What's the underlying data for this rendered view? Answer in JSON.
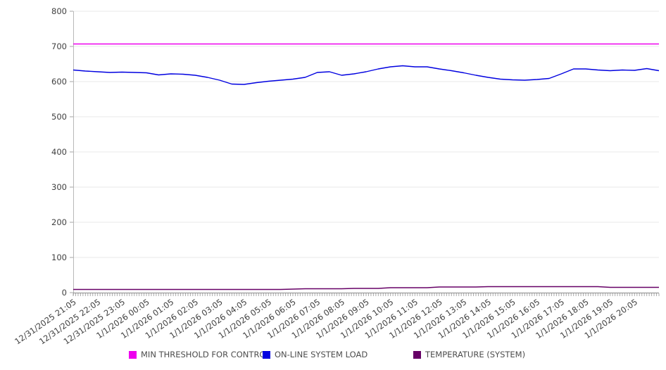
{
  "chart_data": {
    "type": "line",
    "title": "",
    "xlabel": "",
    "ylabel": "",
    "ylim": [
      0,
      800
    ],
    "y_ticks": [
      0,
      100,
      200,
      300,
      400,
      500,
      600,
      700,
      800
    ],
    "grid": "horizontal",
    "legend_position": "bottom",
    "x_labels": [
      "12/31/2025 21:05",
      "12/31/2025 22:05",
      "12/31/2025 23:05",
      "1/1/2026 00:05",
      "1/1/2026 01:05",
      "1/1/2026 02:05",
      "1/1/2026 03:05",
      "1/1/2026 04:05",
      "1/1/2026 05:05",
      "1/1/2026 06:05",
      "1/1/2026 07:05",
      "1/1/2026 08:05",
      "1/1/2026 09:05",
      "1/1/2026 10:05",
      "1/1/2026 11:05",
      "1/1/2026 12:05",
      "1/1/2026 13:05",
      "1/1/2026 14:05",
      "1/1/2026 15:05",
      "1/1/2026 16:05",
      "1/1/2026 17:05",
      "1/1/2026 18:05",
      "1/1/2026 19:05",
      "1/1/2026 20:05"
    ],
    "x_start": "12/31/2025 21:05",
    "x_end": "1/1/2026 21:05",
    "sample_step_minutes": 30,
    "series": [
      {
        "name": "MIN THRESHOLD FOR CONTROL",
        "color": "#ee00ee",
        "values": [
          707,
          707
        ]
      },
      {
        "name": "ON-LINE SYSTEM LOAD",
        "color": "#0000e0",
        "values": [
          633,
          630,
          628,
          626,
          627,
          626,
          625,
          619,
          622,
          621,
          618,
          612,
          604,
          593,
          592,
          597,
          601,
          604,
          607,
          612,
          626,
          628,
          618,
          622,
          628,
          636,
          642,
          645,
          642,
          642,
          636,
          631,
          625,
          618,
          612,
          607,
          605,
          604,
          606,
          609,
          622,
          636,
          636,
          633,
          631,
          633,
          632,
          637,
          631
        ]
      },
      {
        "name": "TEMPERATURE (SYSTEM)",
        "color": "#660066",
        "values": [
          9,
          9,
          9,
          9,
          9,
          9,
          9,
          9,
          9,
          9,
          9,
          9,
          9,
          9,
          9,
          9,
          9,
          9,
          10,
          11,
          11,
          11,
          11,
          12,
          12,
          12,
          14,
          14,
          14,
          14,
          16,
          16,
          16,
          16,
          17,
          17,
          17,
          17,
          17,
          17,
          17,
          17,
          17,
          17,
          15,
          15,
          15,
          15,
          15
        ]
      }
    ]
  }
}
